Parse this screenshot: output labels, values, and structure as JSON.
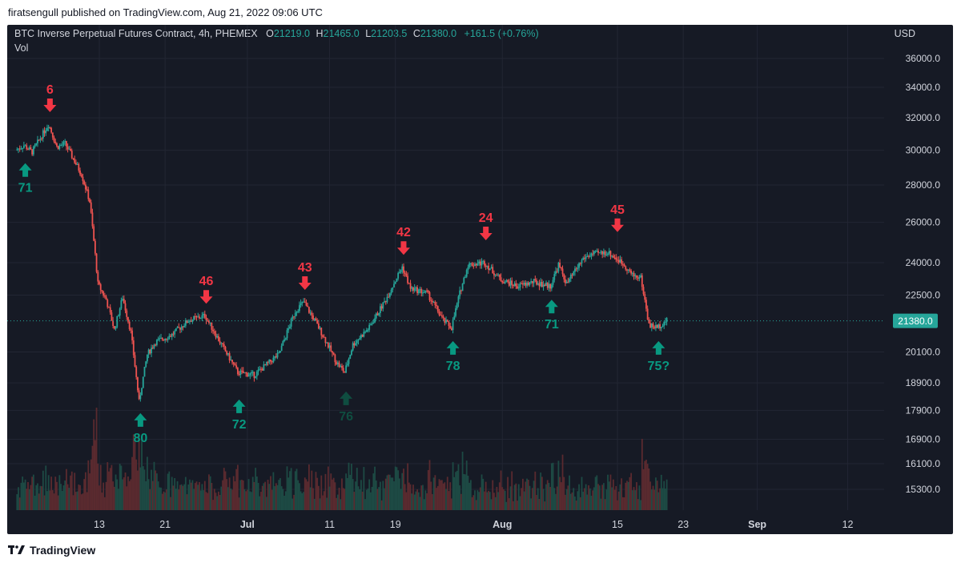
{
  "publisher": "firatsengull published on TradingView.com, Aug 21, 2022 09:06 UTC",
  "legend": {
    "symbol": "BTC Inverse Perpetual Futures Contract, 4h, PHEMEX",
    "o_label": "O",
    "o_value": "21219.0",
    "h_label": "H",
    "h_value": "21465.0",
    "l_label": "L",
    "l_value": "21203.5",
    "c_label": "C",
    "c_value": "21380.0",
    "change": "+161.5 (+0.76%)",
    "volume_label": "Vol"
  },
  "currency": "USD",
  "footer_brand": "TradingView",
  "colors": {
    "up": "#26a69a",
    "down": "#ef5350",
    "arrow_up": "#089981",
    "arrow_down": "#f23645",
    "faded_up": "#0f4d40",
    "background": "#161a25"
  },
  "chart_data": {
    "type": "candlestick",
    "timeframe": "4h",
    "price_scale": "log",
    "price_ticks": [
      "36000.0",
      "34000.0",
      "32000.0",
      "30000.0",
      "28000.0",
      "26000.0",
      "24000.0",
      "22500.0",
      "20100.0",
      "18900.0",
      "17900.0",
      "16900.0",
      "16100.0",
      "15300.0"
    ],
    "time_ticks": [
      "13",
      "21",
      "Jul",
      "11",
      "19",
      "Aug",
      "15",
      "23",
      "Sep",
      "12"
    ],
    "last_price": "21380.0",
    "price_path": [
      {
        "t": "Jun 3",
        "p": 30000
      },
      {
        "t": "Jun 4",
        "p": 30300
      },
      {
        "t": "Jun 5",
        "p": 29900
      },
      {
        "t": "Jun 7",
        "p": 31600
      },
      {
        "t": "Jun 8",
        "p": 30200
      },
      {
        "t": "Jun 9",
        "p": 30400
      },
      {
        "t": "Jun 10",
        "p": 29500
      },
      {
        "t": "Jun 11",
        "p": 28600
      },
      {
        "t": "Jun 12",
        "p": 27100
      },
      {
        "t": "Jun 13",
        "p": 23000
      },
      {
        "t": "Jun 14",
        "p": 22300
      },
      {
        "t": "Jun 15",
        "p": 21000
      },
      {
        "t": "Jun 16",
        "p": 22400
      },
      {
        "t": "Jun 17",
        "p": 20900
      },
      {
        "t": "Jun 18",
        "p": 18200
      },
      {
        "t": "Jun 19",
        "p": 20000
      },
      {
        "t": "Jun 20",
        "p": 20500
      },
      {
        "t": "Jun 22",
        "p": 20800
      },
      {
        "t": "Jun 24",
        "p": 21400
      },
      {
        "t": "Jun 26",
        "p": 21600
      },
      {
        "t": "Jun 28",
        "p": 20400
      },
      {
        "t": "Jun 30",
        "p": 19300
      },
      {
        "t": "Jul 2",
        "p": 19200
      },
      {
        "t": "Jul 5",
        "p": 20000
      },
      {
        "t": "Jul 7",
        "p": 21800
      },
      {
        "t": "Jul 8",
        "p": 22200
      },
      {
        "t": "Jul 10",
        "p": 21000
      },
      {
        "t": "Jul 12",
        "p": 19700
      },
      {
        "t": "Jul 13",
        "p": 19300
      },
      {
        "t": "Jul 14",
        "p": 20400
      },
      {
        "t": "Jul 16",
        "p": 21100
      },
      {
        "t": "Jul 18",
        "p": 22300
      },
      {
        "t": "Jul 20",
        "p": 23800
      },
      {
        "t": "Jul 21",
        "p": 22800
      },
      {
        "t": "Jul 23",
        "p": 22600
      },
      {
        "t": "Jul 25",
        "p": 21400
      },
      {
        "t": "Jul 26",
        "p": 21100
      },
      {
        "t": "Jul 27",
        "p": 22600
      },
      {
        "t": "Jul 28",
        "p": 23900
      },
      {
        "t": "Jul 30",
        "p": 24000
      },
      {
        "t": "Aug 1",
        "p": 23200
      },
      {
        "t": "Aug 3",
        "p": 22900
      },
      {
        "t": "Aug 5",
        "p": 23100
      },
      {
        "t": "Aug 7",
        "p": 22900
      },
      {
        "t": "Aug 8",
        "p": 23900
      },
      {
        "t": "Aug 9",
        "p": 23000
      },
      {
        "t": "Aug 11",
        "p": 24200
      },
      {
        "t": "Aug 12",
        "p": 24400
      },
      {
        "t": "Aug 14",
        "p": 24500
      },
      {
        "t": "Aug 15",
        "p": 24200
      },
      {
        "t": "Aug 16",
        "p": 23900
      },
      {
        "t": "Aug 17",
        "p": 23400
      },
      {
        "t": "Aug 18",
        "p": 23300
      },
      {
        "t": "Aug 19",
        "p": 21200
      },
      {
        "t": "Aug 20",
        "p": 21100
      },
      {
        "t": "Aug 21",
        "p": 21380
      }
    ],
    "annotations": [
      {
        "label": "6",
        "dir": "down",
        "t": "Jun 7",
        "p": 31600
      },
      {
        "label": "71",
        "dir": "up",
        "t": "Jun 4",
        "p": 29900
      },
      {
        "label": "80",
        "dir": "up",
        "t": "Jun 18",
        "p": 18200
      },
      {
        "label": "46",
        "dir": "down",
        "t": "Jun 26",
        "p": 21600
      },
      {
        "label": "72",
        "dir": "up",
        "t": "Jun 30",
        "p": 18700
      },
      {
        "label": "43",
        "dir": "down",
        "t": "Jul 8",
        "p": 22200
      },
      {
        "label": "76",
        "dir": "up",
        "t": "Jul 13",
        "p": 19000,
        "faded": true
      },
      {
        "label": "42",
        "dir": "down",
        "t": "Jul 20",
        "p": 23800
      },
      {
        "label": "78",
        "dir": "up",
        "t": "Jul 26",
        "p": 21000
      },
      {
        "label": "24",
        "dir": "down",
        "t": "Jul 30",
        "p": 24500
      },
      {
        "label": "71",
        "dir": "up",
        "t": "Aug 7",
        "p": 22800
      },
      {
        "label": "45",
        "dir": "down",
        "t": "Aug 15",
        "p": 24900
      },
      {
        "label": "75?",
        "dir": "up",
        "t": "Aug 20",
        "p": 21000
      }
    ]
  }
}
